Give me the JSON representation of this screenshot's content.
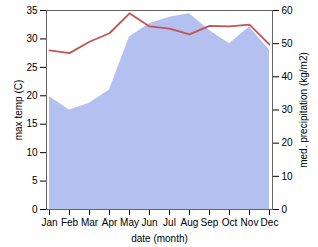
{
  "chart_data": {
    "type": "line",
    "categories": [
      "Jan",
      "Feb",
      "Mar",
      "Apr",
      "May",
      "Jun",
      "Jul",
      "Aug",
      "Sep",
      "Oct",
      "Nov",
      "Dec"
    ],
    "xlabel": "date (month)",
    "ylabel": "max temp (C)",
    "y2label": "med. precipitation (kg/m2)",
    "ylim": [
      0,
      35
    ],
    "yticks": [
      0,
      5,
      10,
      15,
      20,
      25,
      30,
      35
    ],
    "y2lim": [
      0,
      60
    ],
    "y2ticks": [
      0,
      10,
      20,
      30,
      40,
      50,
      60
    ],
    "series": [
      {
        "type": "area",
        "axis": "y2",
        "color": "#b3c0f0",
        "values": [
          34,
          30,
          32,
          36,
          52,
          56,
          58,
          59,
          54,
          50,
          55,
          48
        ]
      },
      {
        "type": "line",
        "axis": "y",
        "color": "#c8524f",
        "values": [
          28,
          27.5,
          29.5,
          31,
          34.5,
          32.2,
          31.8,
          30.8,
          32.3,
          32.2,
          32.5,
          29
        ]
      }
    ]
  }
}
